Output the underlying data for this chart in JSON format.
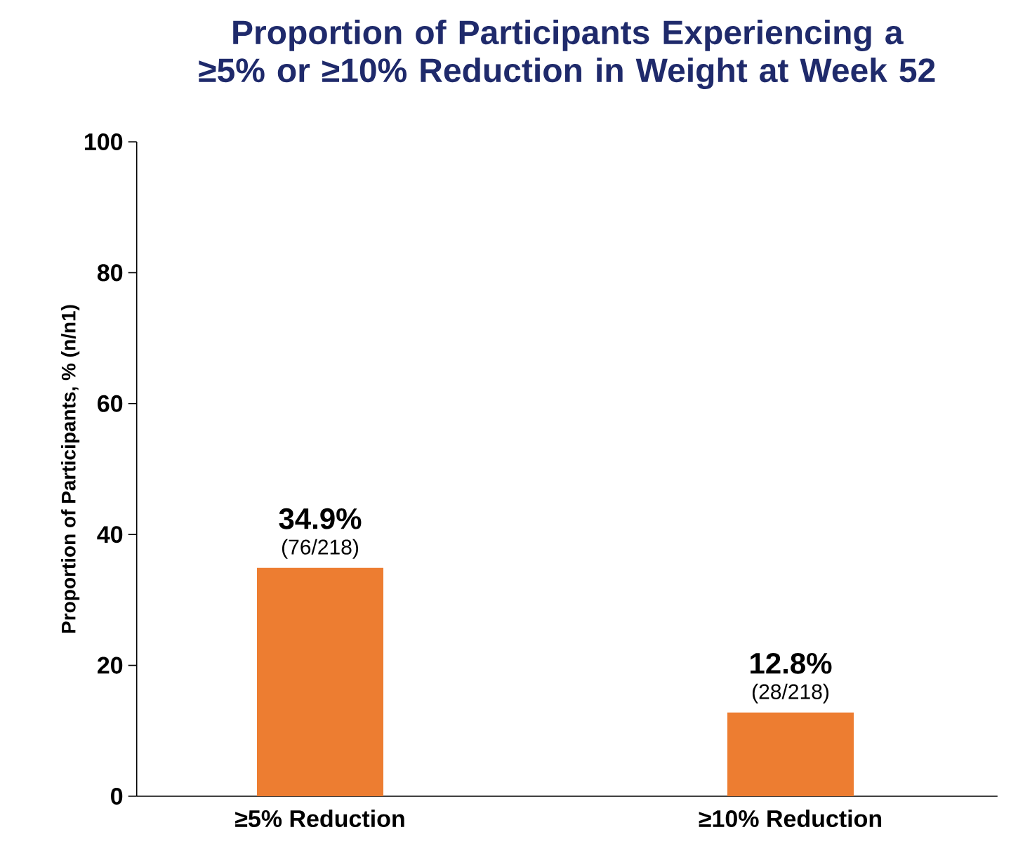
{
  "chart_data": {
    "type": "bar",
    "title": "Proportion of Participants Experiencing a ≥5% or ≥10% Reduction in Weight at Week 52",
    "ylabel": "Proportion of Participants, % (n/n1)",
    "categories": [
      "≥5% Reduction",
      "≥10% Reduction"
    ],
    "values": [
      34.9,
      12.8
    ],
    "color": "#ed7d31",
    "value_labels": [
      "34.9%",
      "12.8%"
    ],
    "annotations": [
      {
        "text": "(76/218)",
        "x": "≥5% Reduction",
        "y": 34.9
      },
      {
        "text": "(28/218)",
        "x": "≥10% Reduction",
        "y": 12.8
      }
    ],
    "ylim": [
      0,
      100
    ],
    "yticks": [
      0,
      20,
      40,
      60,
      80,
      100
    ],
    "grid": false
  }
}
